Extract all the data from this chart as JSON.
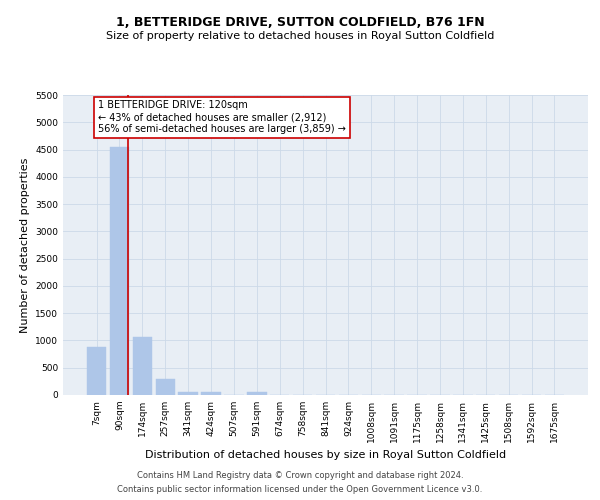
{
  "title": "1, BETTERIDGE DRIVE, SUTTON COLDFIELD, B76 1FN",
  "subtitle": "Size of property relative to detached houses in Royal Sutton Coldfield",
  "xlabel": "Distribution of detached houses by size in Royal Sutton Coldfield",
  "ylabel": "Number of detached properties",
  "bar_labels": [
    "7sqm",
    "90sqm",
    "174sqm",
    "257sqm",
    "341sqm",
    "424sqm",
    "507sqm",
    "591sqm",
    "674sqm",
    "758sqm",
    "841sqm",
    "924sqm",
    "1008sqm",
    "1091sqm",
    "1175sqm",
    "1258sqm",
    "1341sqm",
    "1425sqm",
    "1508sqm",
    "1592sqm",
    "1675sqm"
  ],
  "bar_values": [
    880,
    4540,
    1060,
    300,
    60,
    55,
    0,
    60,
    0,
    0,
    0,
    0,
    0,
    0,
    0,
    0,
    0,
    0,
    0,
    0,
    0
  ],
  "bar_color": "#aec6e8",
  "bar_edgecolor": "#aec6e8",
  "vline_x": 1.37,
  "vline_color": "#cc0000",
  "ylim": [
    0,
    5500
  ],
  "yticks": [
    0,
    500,
    1000,
    1500,
    2000,
    2500,
    3000,
    3500,
    4000,
    4500,
    5000,
    5500
  ],
  "grid_color": "#ccd9e8",
  "annotation_text": "1 BETTERIDGE DRIVE: 120sqm\n← 43% of detached houses are smaller (2,912)\n56% of semi-detached houses are larger (3,859) →",
  "annotation_box_facecolor": "#ffffff",
  "annotation_box_edgecolor": "#cc0000",
  "footer_line1": "Contains HM Land Registry data © Crown copyright and database right 2024.",
  "footer_line2": "Contains public sector information licensed under the Open Government Licence v3.0.",
  "plot_bg_color": "#e8eef5",
  "title_fontsize": 9,
  "subtitle_fontsize": 8,
  "tick_fontsize": 6.5,
  "ylabel_fontsize": 8,
  "xlabel_fontsize": 8,
  "annotation_fontsize": 7,
  "footer_fontsize": 6
}
